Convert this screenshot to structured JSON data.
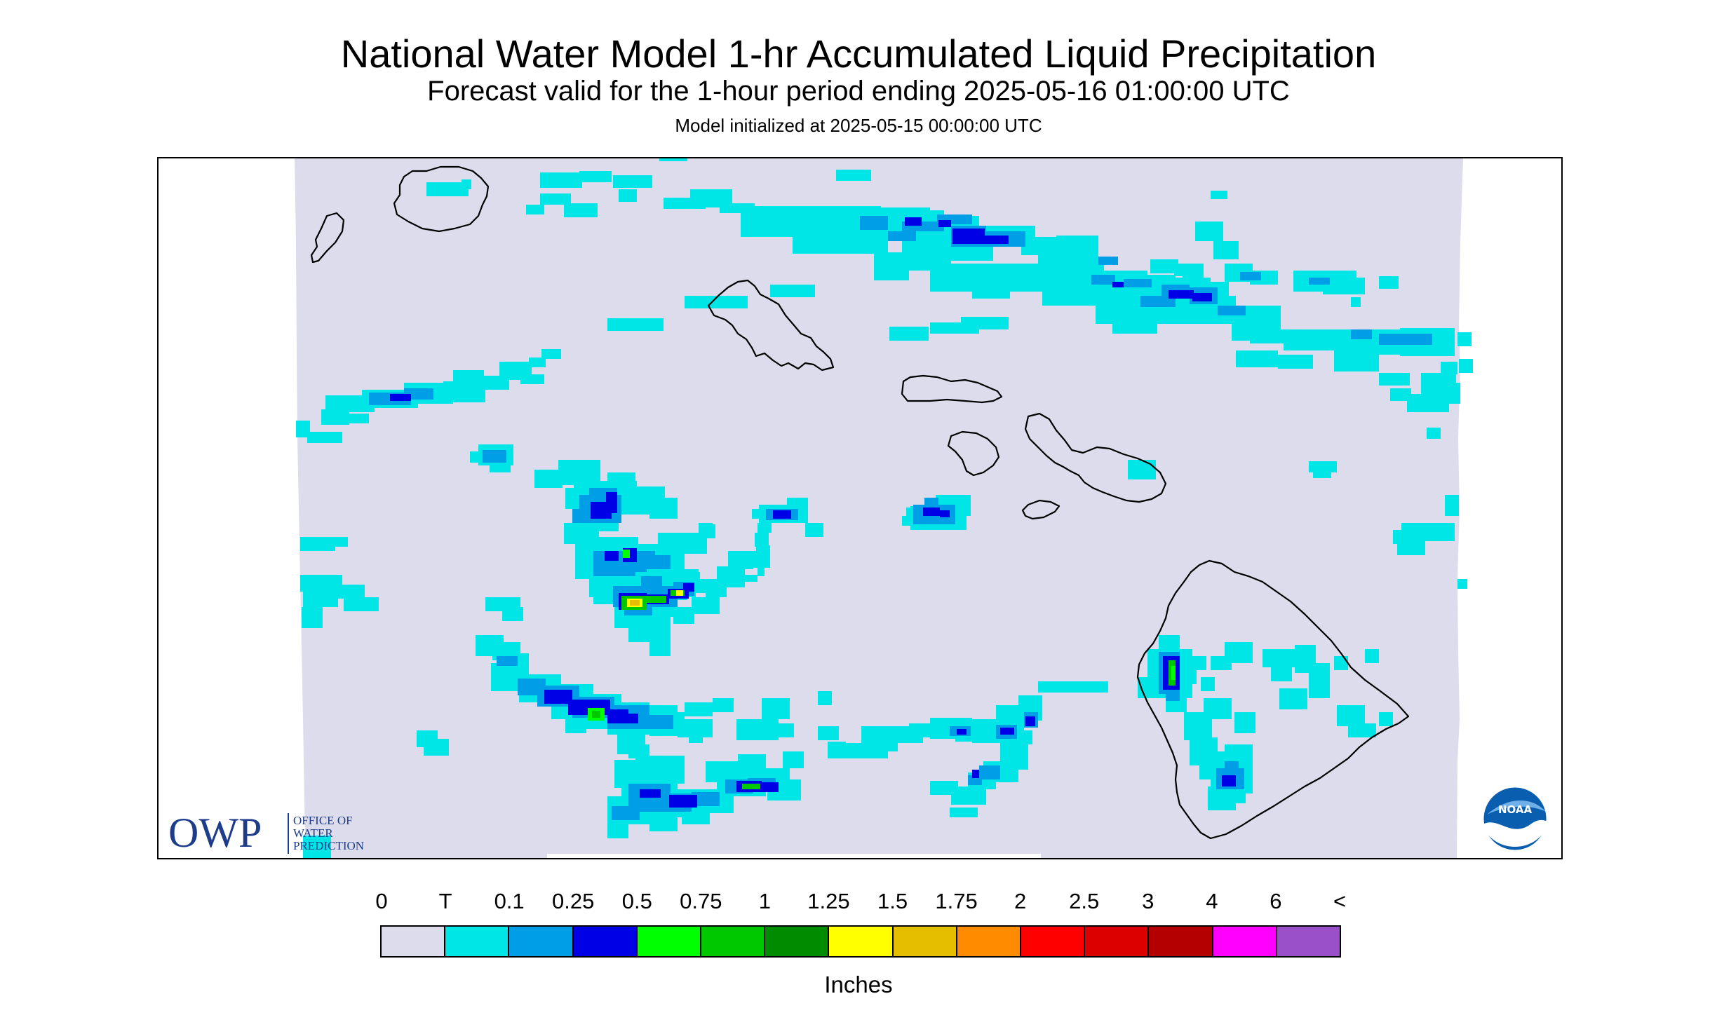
{
  "title": "National Water Model 1-hr Accumulated Liquid Precipitation",
  "subtitle": "Forecast valid for the 1-hour period ending 2025-05-16 01:00:00 UTC",
  "init_line": "Model initialized at 2025-05-15 00:00:00 UTC",
  "map": {
    "domain_fill": "#dcdcec",
    "coastline_color": "#000000",
    "islands": [
      "Niihau",
      "Kauai",
      "Oahu",
      "Molokai",
      "Lanai",
      "Maui",
      "Kahoolawe",
      "Hawaii"
    ]
  },
  "legend": {
    "tick_labels": [
      "0",
      "T",
      "0.1",
      "0.25",
      "0.5",
      "0.75",
      "1",
      "1.25",
      "1.5",
      "1.75",
      "2",
      "2.5",
      "3",
      "4",
      "6",
      "<"
    ],
    "colors": [
      "#dcdcec",
      "#00e6e6",
      "#009ee6",
      "#0000e6",
      "#00ff00",
      "#00c800",
      "#008c00",
      "#ffff00",
      "#e6be00",
      "#ff8c00",
      "#ff0000",
      "#dc0000",
      "#b40000",
      "#ff00ff",
      "#9a50c8"
    ],
    "units": "Inches"
  },
  "logos": {
    "owp": {
      "letters": "OWP",
      "name": "OFFICE OF\nWATER\nPREDICTION"
    },
    "noaa": {
      "text": "NOAA",
      "icon": "noaa-logo"
    }
  }
}
